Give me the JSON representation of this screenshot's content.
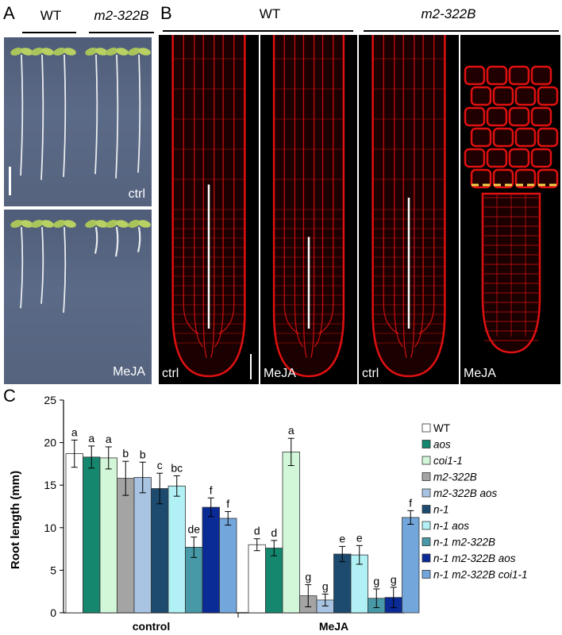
{
  "panel_a": {
    "label": "A",
    "col_labels": [
      "WT",
      "m2-322B"
    ],
    "plates": [
      {
        "label": "ctrl",
        "seedling_groups": [
          [
            0.85,
            0.88,
            0.86
          ],
          [
            0.84,
            0.87,
            0.83
          ]
        ]
      },
      {
        "label": "MeJA",
        "seedling_groups": [
          [
            0.55,
            0.52,
            0.58
          ],
          [
            0.18,
            0.2,
            0.17
          ]
        ]
      }
    ]
  },
  "panel_b": {
    "label": "B",
    "group_labels": [
      "WT",
      "m2-322B"
    ],
    "images": [
      {
        "label": "ctrl",
        "meristem_fraction": 0.55
      },
      {
        "label": "MeJA",
        "meristem_fraction": 0.35
      },
      {
        "label": "ctrl",
        "meristem_fraction": 0.5
      },
      {
        "label": "MeJA",
        "meristem_fraction": 0
      }
    ]
  },
  "panel_c": {
    "label": "C",
    "chart_data": {
      "type": "bar",
      "ylabel": "Root length (mm)",
      "xlabel": "",
      "ylim": [
        0,
        25
      ],
      "yticks": [
        0,
        5,
        10,
        15,
        20,
        25
      ],
      "categories": [
        "control",
        "MeJA"
      ],
      "series": [
        {
          "name": "WT",
          "color": "#ffffff",
          "values": [
            18.7,
            8.0
          ],
          "errors": [
            1.6,
            0.7
          ],
          "letters": [
            "a",
            "d"
          ]
        },
        {
          "name": "aos",
          "color": "#15876e",
          "values": [
            18.3,
            7.6
          ],
          "errors": [
            1.3,
            0.9
          ],
          "letters": [
            "a",
            "d"
          ]
        },
        {
          "name": "coi1-1",
          "color": "#d2f7d8",
          "values": [
            18.2,
            18.9
          ],
          "errors": [
            1.3,
            1.6
          ],
          "letters": [
            "a",
            "a"
          ]
        },
        {
          "name": "m2-322B",
          "color": "#a4a4a4",
          "values": [
            15.8,
            2.0
          ],
          "errors": [
            2.0,
            1.3
          ],
          "letters": [
            "b",
            "g"
          ]
        },
        {
          "name": "m2-322B aos",
          "color": "#a9c4e3",
          "values": [
            15.9,
            1.5
          ],
          "errors": [
            1.8,
            0.7
          ],
          "letters": [
            "b",
            "g"
          ]
        },
        {
          "name": "n-1",
          "color": "#1d4b6f",
          "values": [
            14.6,
            6.9
          ],
          "errors": [
            1.8,
            0.9
          ],
          "letters": [
            "c",
            "e"
          ]
        },
        {
          "name": "n-1 aos",
          "color": "#b1f1f5",
          "values": [
            14.9,
            6.8
          ],
          "errors": [
            1.2,
            1.1
          ],
          "letters": [
            "bc",
            "e"
          ]
        },
        {
          "name": "n-1 m2-322B",
          "color": "#4899a8",
          "values": [
            7.7,
            1.7
          ],
          "errors": [
            1.2,
            1.1
          ],
          "letters": [
            "de",
            "g"
          ]
        },
        {
          "name": "n-1 m2-322B aos",
          "color": "#0a2a96",
          "values": [
            12.4,
            1.8
          ],
          "errors": [
            1.1,
            1.2
          ],
          "letters": [
            "f",
            "g"
          ]
        },
        {
          "name": "n-1 m2-322B coi1-1",
          "color": "#73a6db",
          "values": [
            11.1,
            11.2
          ],
          "errors": [
            0.8,
            0.8
          ],
          "letters": [
            "f",
            "f"
          ]
        }
      ]
    }
  }
}
